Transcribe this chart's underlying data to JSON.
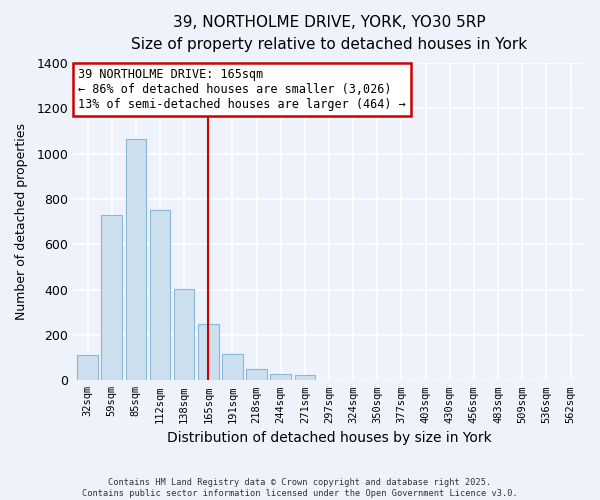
{
  "title_line1": "39, NORTHOLME DRIVE, YORK, YO30 5RP",
  "title_line2": "Size of property relative to detached houses in York",
  "xlabel": "Distribution of detached houses by size in York",
  "ylabel": "Number of detached properties",
  "bar_labels": [
    "32sqm",
    "59sqm",
    "85sqm",
    "112sqm",
    "138sqm",
    "165sqm",
    "191sqm",
    "218sqm",
    "244sqm",
    "271sqm",
    "297sqm",
    "324sqm",
    "350sqm",
    "377sqm",
    "403sqm",
    "430sqm",
    "456sqm",
    "483sqm",
    "509sqm",
    "536sqm",
    "562sqm"
  ],
  "bar_values": [
    110,
    730,
    1065,
    750,
    405,
    250,
    115,
    50,
    28,
    22,
    0,
    0,
    0,
    0,
    0,
    0,
    0,
    0,
    0,
    0,
    0
  ],
  "bar_color_fill": "#cde0f0",
  "bar_color_edge": "#8ab8d8",
  "vline_color": "#cc0000",
  "vline_x_index": 5,
  "annotation_text_line1": "39 NORTHOLME DRIVE: 165sqm",
  "annotation_text_line2": "← 86% of detached houses are smaller (3,026)",
  "annotation_text_line3": "13% of semi-detached houses are larger (464) →",
  "annotation_box_edgecolor": "#cc0000",
  "annotation_fill": "white",
  "ylim": [
    0,
    1400
  ],
  "yticks": [
    0,
    200,
    400,
    600,
    800,
    1000,
    1200,
    1400
  ],
  "background_color": "#eef2fa",
  "grid_color": "white",
  "footer_line1": "Contains HM Land Registry data © Crown copyright and database right 2025.",
  "footer_line2": "Contains public sector information licensed under the Open Government Licence v3.0."
}
